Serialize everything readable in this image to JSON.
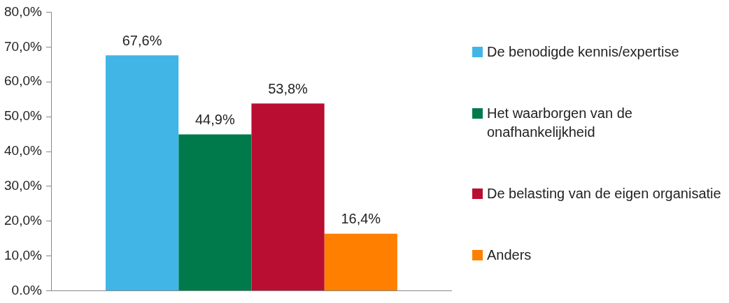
{
  "chart_data": {
    "type": "bar",
    "categories": [
      null
    ],
    "series": [
      {
        "name": "De benodigde kennis/expertise",
        "color": "#41b6e6",
        "values": [
          67.6
        ],
        "value_labels": [
          "67,6%"
        ]
      },
      {
        "name": "Het waarborgen van de onafhankelijkheid",
        "color": "#007a4b",
        "values": [
          44.9
        ],
        "value_labels": [
          "44,9%"
        ]
      },
      {
        "name": "De belasting van de eigen organisatie",
        "color": "#b90e31",
        "values": [
          53.8
        ],
        "value_labels": [
          "53,8%"
        ]
      },
      {
        "name": "Anders",
        "color": "#ff8000",
        "values": [
          16.4
        ],
        "value_labels": [
          "16,4%"
        ]
      }
    ],
    "ylim": [
      0,
      80
    ],
    "yticks": [
      {
        "value": 0,
        "label": "0.0%"
      },
      {
        "value": 10,
        "label": "10,0%"
      },
      {
        "value": 20,
        "label": "20,0%"
      },
      {
        "value": 30,
        "label": "30,0%"
      },
      {
        "value": 40,
        "label": "40,0%"
      },
      {
        "value": 50,
        "label": "50,0%"
      },
      {
        "value": 60,
        "label": "60,0%"
      },
      {
        "value": 70,
        "label": "70,0%"
      },
      {
        "value": 80,
        "label": "80,0%"
      }
    ],
    "grid": false,
    "legend": "right"
  }
}
